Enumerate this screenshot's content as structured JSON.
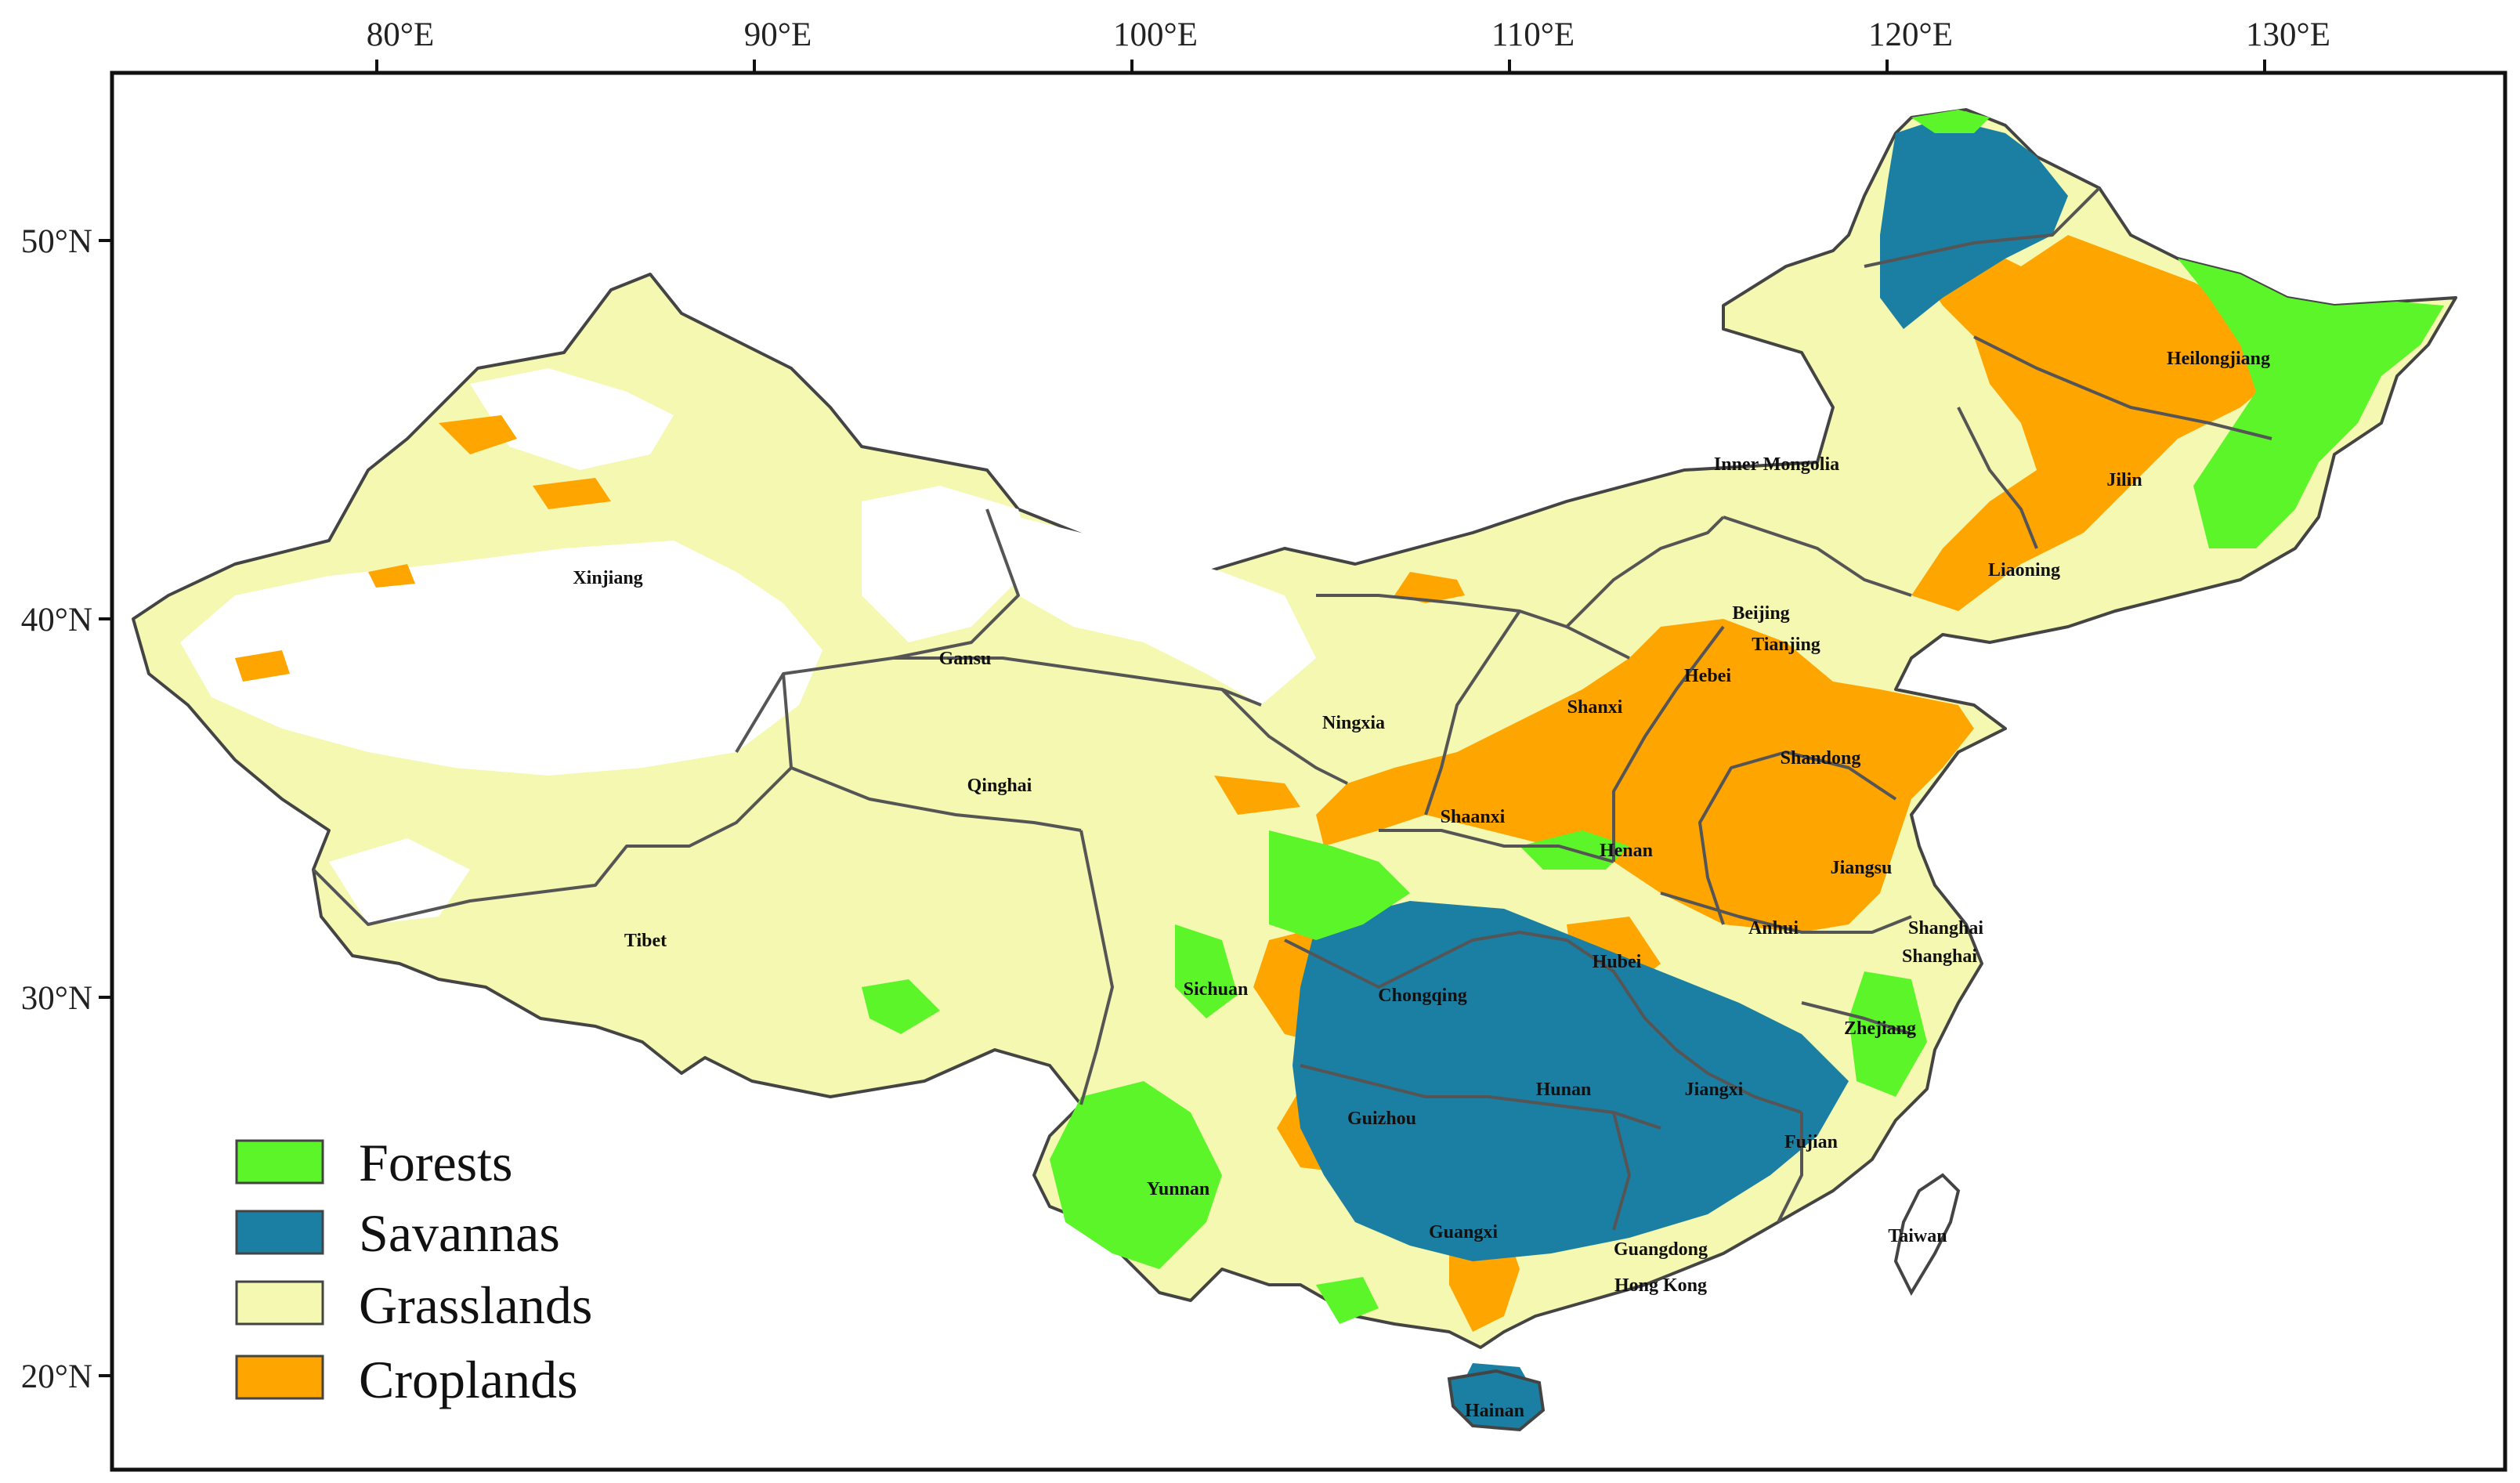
{
  "map": {
    "longitude_ticks": [
      "80°E",
      "90°E",
      "100°E",
      "110°E",
      "120°E",
      "130°E"
    ],
    "latitude_ticks": [
      "50°N",
      "40°N",
      "30°N",
      "20°N"
    ],
    "legend": [
      {
        "label": "Forests",
        "color": "#5cf52a"
      },
      {
        "label": "Savannas",
        "color": "#1a7fa3"
      },
      {
        "label": "Grasslands",
        "color": "#f4f8b0"
      },
      {
        "label": "Croplands",
        "color": "#ffa500"
      }
    ],
    "provinces": [
      "Heilongjiang",
      "Jilin",
      "Liaoning",
      "Inner Mongolia",
      "Xinjiang",
      "Beijing",
      "Tianjing",
      "Hebei",
      "Shanxi",
      "Gansu",
      "Ningxia",
      "Shandong",
      "Qinghai",
      "Shaanxi",
      "Henan",
      "Jiangsu",
      "Tibet",
      "Anhui",
      "Shanghai",
      "Shanghai",
      "Sichuan",
      "Chongqing",
      "Hubei",
      "Zhejiang",
      "Hunan",
      "Jiangxi",
      "Guizhou",
      "Fujian",
      "Yunnan",
      "Taiwan",
      "Guangxi",
      "Guangdong",
      "Hong Kong",
      "Hainan"
    ]
  }
}
